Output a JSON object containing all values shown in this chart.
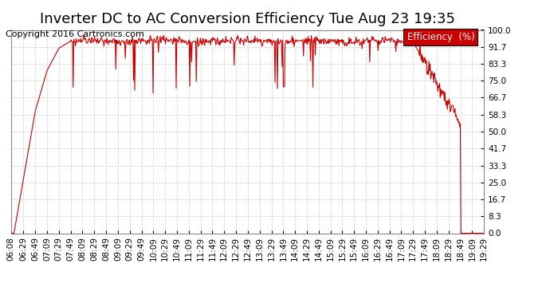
{
  "title": "Inverter DC to AC Conversion Efficiency Tue Aug 23 19:35",
  "copyright": "Copyright 2016 Cartronics.com",
  "legend_label": "Efficiency  (%)",
  "legend_bg": "#cc0000",
  "legend_text_color": "#ffffff",
  "line_color": "#cc0000",
  "bg_color": "#ffffff",
  "grid_color": "#cccccc",
  "yticks": [
    0.0,
    8.3,
    16.7,
    25.0,
    33.3,
    41.7,
    50.0,
    58.3,
    66.7,
    75.0,
    83.3,
    91.7,
    100.0
  ],
  "xtick_labels": [
    "06:08",
    "06:29",
    "06:49",
    "07:09",
    "07:29",
    "07:49",
    "08:09",
    "08:29",
    "08:49",
    "09:09",
    "09:29",
    "09:49",
    "10:09",
    "10:29",
    "10:49",
    "11:09",
    "11:29",
    "11:49",
    "12:09",
    "12:29",
    "12:49",
    "13:09",
    "13:29",
    "13:49",
    "14:09",
    "14:29",
    "14:49",
    "15:09",
    "15:29",
    "15:49",
    "16:09",
    "16:29",
    "16:49",
    "17:09",
    "17:29",
    "17:49",
    "18:09",
    "18:29",
    "18:49",
    "19:09",
    "19:29"
  ],
  "title_fontsize": 13,
  "copyright_fontsize": 8,
  "tick_fontsize": 7.5
}
